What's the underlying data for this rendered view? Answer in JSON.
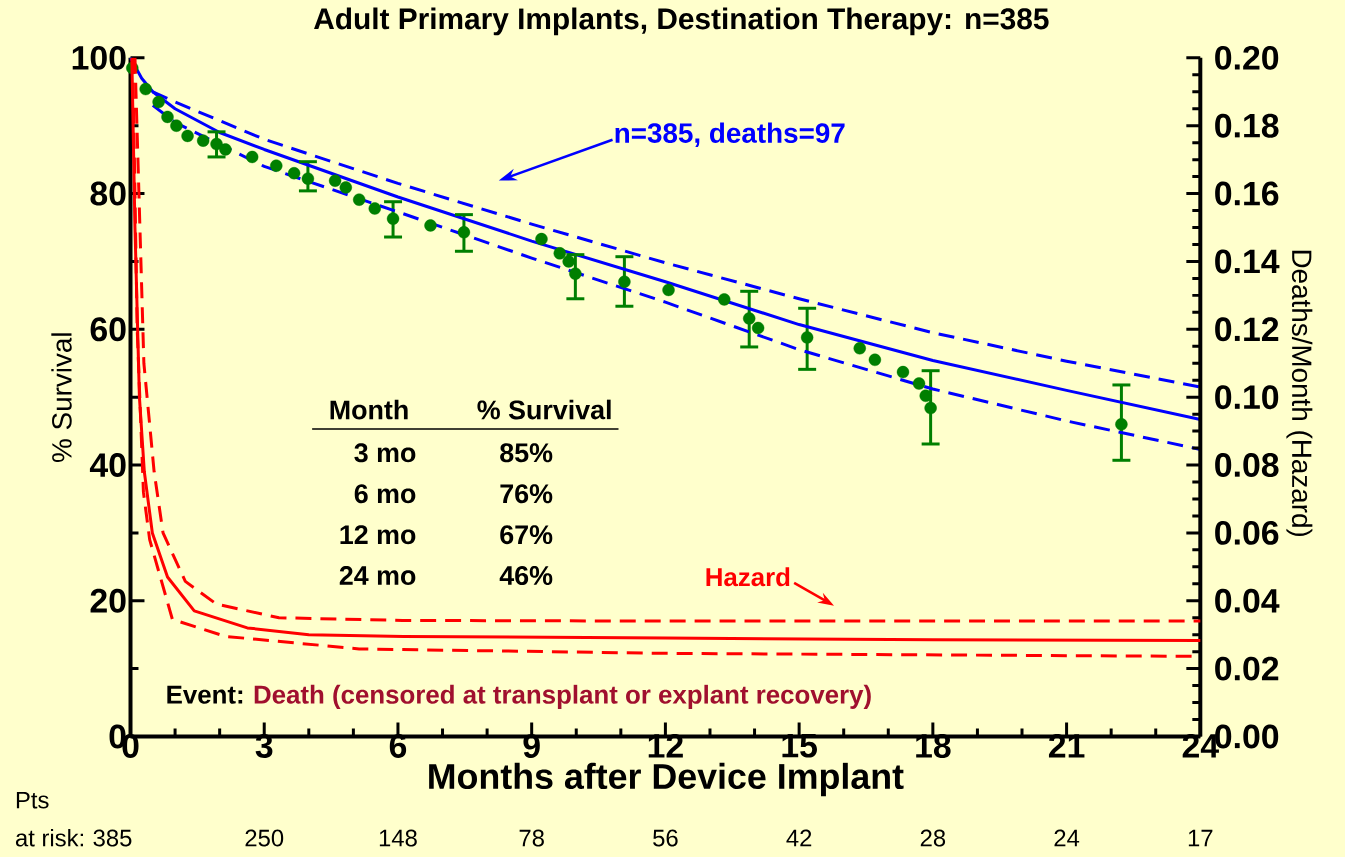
{
  "chart_data": {
    "type": "line",
    "title": "Adult Primary Implants, Destination Therapy: n=385",
    "xlabel": "Months after Device Implant",
    "ylabel": "% Survival",
    "y2label": "Deaths/Month (Hazard)",
    "xlim": [
      0,
      24
    ],
    "xticks": [
      0,
      3,
      6,
      9,
      12,
      15,
      18,
      21,
      24
    ],
    "ylim": [
      0,
      100
    ],
    "yticks": [
      0,
      20,
      40,
      60,
      80,
      100
    ],
    "y2lim": [
      0,
      0.2
    ],
    "y2ticks": [
      {
        "value": 0,
        "label": "0.00"
      },
      {
        "value": 0.02,
        "label": "0.02"
      },
      {
        "value": 0.04,
        "label": "0.04"
      },
      {
        "value": 0.06,
        "label": "0.06"
      },
      {
        "value": 0.08,
        "label": "0.08"
      },
      {
        "value": 0.1,
        "label": "0.10"
      },
      {
        "value": 0.12,
        "label": "0.12"
      },
      {
        "value": 0.14,
        "label": "0.14"
      },
      {
        "value": 0.16,
        "label": "0.16"
      },
      {
        "value": 0.18,
        "label": "0.18"
      },
      {
        "value": 0.2,
        "label": "0.20"
      }
    ],
    "series": [
      {
        "type": "scatter",
        "color": "#007f00",
        "marker": "circle",
        "x": [
          0.04,
          0.34,
          0.63,
          0.83,
          1.03,
          1.28,
          1.63,
          1.93,
          2.13,
          2.73,
          3.27,
          3.67,
          3.98,
          4.59,
          4.83,
          5.13,
          5.48,
          5.89,
          6.73,
          7.48,
          9.22,
          9.63,
          9.83,
          9.98,
          11.08,
          12.07,
          13.32,
          13.88,
          14.08,
          15.18,
          16.36,
          16.7,
          17.33,
          17.69,
          17.84,
          17.95,
          22.23
        ],
        "values": [
          98.5,
          95.4,
          93.5,
          91.3,
          90,
          88.5,
          87.8,
          87.3,
          86.5,
          85.4,
          84.1,
          83,
          82.2,
          81.9,
          80.9,
          79.1,
          77.8,
          76.3,
          75.3,
          74.3,
          73.3,
          71.2,
          70,
          68.2,
          67,
          65.8,
          64.4,
          61.6,
          60.2,
          58.8,
          57.2,
          55.5,
          53.7,
          52,
          50.2,
          48.4,
          46
        ],
        "errors": [
          null,
          null,
          null,
          null,
          null,
          null,
          null,
          [
            85.4,
            89.1
          ],
          null,
          null,
          null,
          null,
          [
            80.4,
            84.7
          ],
          null,
          null,
          null,
          null,
          [
            73.6,
            78.8
          ],
          null,
          [
            71.5,
            76.9
          ],
          null,
          null,
          null,
          [
            64.5,
            71
          ],
          [
            63.4,
            70.7
          ],
          null,
          null,
          [
            57.4,
            65.6
          ],
          null,
          [
            54.1,
            63.1
          ],
          null,
          null,
          null,
          null,
          null,
          [
            43.1,
            53.9
          ],
          [
            40.7,
            51.8
          ]
        ]
      },
      {
        "color": "#0000ff",
        "line_style": "solid",
        "marker": "none",
        "x": [
          0,
          0.25,
          0.5,
          1,
          2,
          3,
          6,
          9,
          12,
          15,
          18,
          21,
          24
        ],
        "values": [
          100,
          97,
          95,
          92.5,
          89,
          86.5,
          79.5,
          73,
          67,
          60.7,
          55.4,
          51,
          46.7
        ]
      },
      {
        "color": "#0000ff",
        "line_style": "dashed",
        "marker": "none",
        "x": [
          0.5,
          1,
          3,
          6,
          9,
          12,
          15,
          18,
          21,
          24
        ],
        "values": [
          95,
          93.5,
          88,
          81.5,
          75.5,
          69.8,
          64.5,
          59.5,
          55.3,
          51.5
        ]
      },
      {
        "color": "#0000ff",
        "line_style": "dashed",
        "marker": "none",
        "x": [
          0.5,
          1,
          3,
          6,
          9,
          12,
          15,
          18,
          21,
          24
        ],
        "values": [
          93,
          90.5,
          84,
          77.3,
          70.5,
          64,
          57,
          51.2,
          46.5,
          42.3
        ]
      },
      {
        "axis": "y2",
        "color": "#ff0000",
        "line_style": "solid",
        "marker": "none",
        "x": [
          0.03,
          0.1,
          0.2,
          0.31,
          0.49,
          0.83,
          1.43,
          2.62,
          4,
          6.13,
          12,
          18,
          24
        ],
        "values": [
          0.2,
          0.15,
          0.1,
          0.078,
          0.06,
          0.047,
          0.037,
          0.032,
          0.03,
          0.0295,
          0.029,
          0.0285,
          0.0283
        ]
      },
      {
        "axis": "y2",
        "color": "#ff0000",
        "line_style": "dashed",
        "marker": "none",
        "x": [
          0.1,
          0.3,
          0.53,
          0.73,
          1.23,
          1.93,
          3.33,
          6.1,
          12,
          24
        ],
        "values": [
          0.2,
          0.11,
          0.078,
          0.06,
          0.0457,
          0.039,
          0.035,
          0.0342,
          0.034,
          0.034
        ]
      },
      {
        "axis": "y2",
        "color": "#ff0000",
        "line_style": "dashed",
        "marker": "none",
        "x": [
          0.05,
          0.15,
          0.29,
          0.43,
          0.94,
          2.13,
          5.13,
          12,
          24
        ],
        "values": [
          0.2,
          0.12,
          0.072,
          0.058,
          0.0345,
          0.0295,
          0.0258,
          0.0245,
          0.0236
        ]
      }
    ],
    "annotations": [
      "n=385, deaths=97",
      "Hazard",
      "Month",
      "% Survival",
      "3 mo",
      "85%",
      "6 mo",
      "76%",
      "12 mo",
      "67%",
      "24 mo",
      "46%",
      "Event:",
      "Death (censored at transplant or explant recovery)",
      "Pts",
      "at risk:",
      "385",
      "250",
      "148",
      "78",
      "56",
      "42",
      "28",
      "24",
      "17"
    ]
  }
}
